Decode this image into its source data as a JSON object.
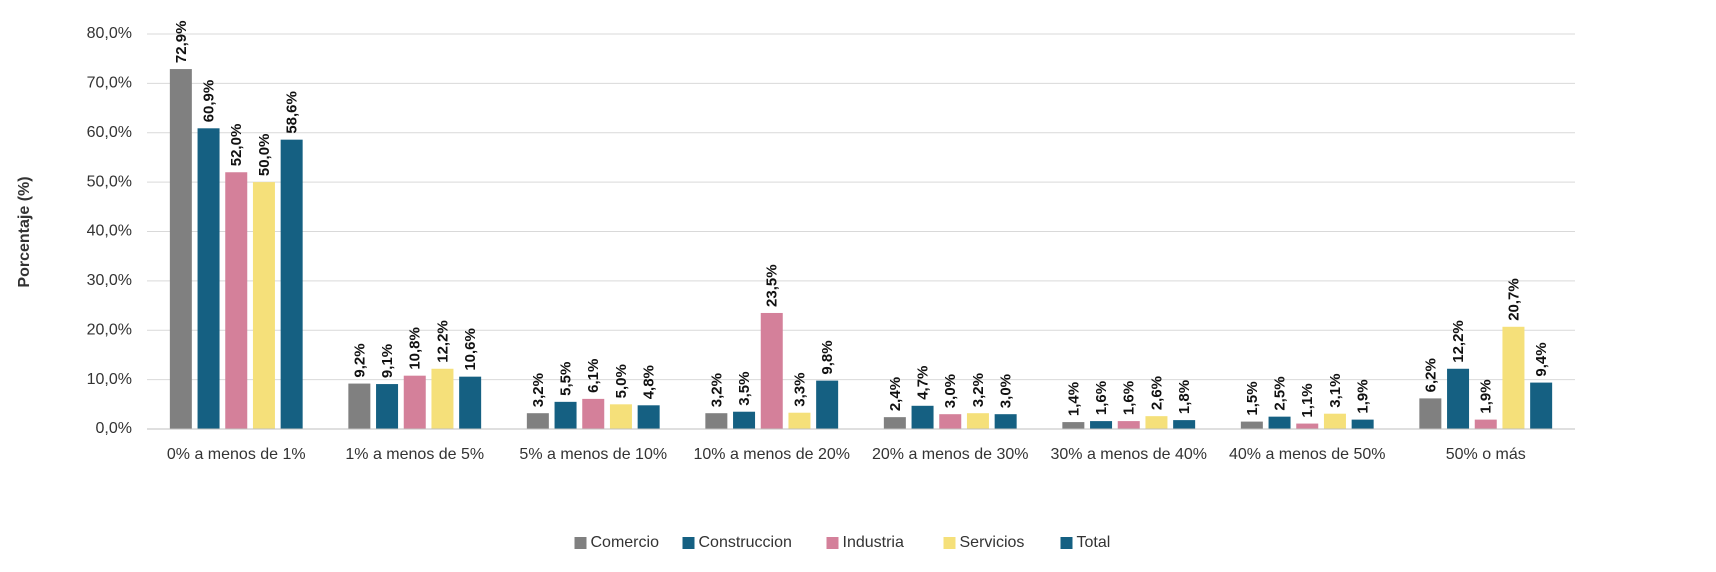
{
  "chart_data": {
    "type": "bar",
    "y_label": "Porcentaje (%)",
    "categories": [
      "0% a menos de 1%",
      "1% a menos de 5%",
      "5% a menos de 10%",
      "10% a menos de 20%",
      "20% a menos de 30%",
      "30% a menos de 40%",
      "40% a menos de 50%",
      "50% o más"
    ],
    "series": [
      {
        "name": "Comercio",
        "color": "#808080",
        "values": [
          72.9,
          9.2,
          3.2,
          3.2,
          2.4,
          1.4,
          1.5,
          6.2
        ],
        "value_labels": [
          "72,9%",
          "9,2%",
          "3,2%",
          "3,2%",
          "2,4%",
          "1,4%",
          "1,5%",
          "6,2%"
        ]
      },
      {
        "name": "Construccion",
        "color": "#156082",
        "values": [
          60.9,
          9.1,
          5.5,
          3.5,
          4.7,
          1.6,
          2.5,
          12.2
        ],
        "value_labels": [
          "60,9%",
          "9,1%",
          "5,5%",
          "3,5%",
          "4,7%",
          "1,6%",
          "2,5%",
          "12,2%"
        ]
      },
      {
        "name": "Industria",
        "color": "#d4809a",
        "values": [
          52.0,
          10.8,
          6.1,
          23.5,
          3.0,
          1.6,
          1.1,
          1.9
        ],
        "value_labels": [
          "52,0%",
          "10,8%",
          "6,1%",
          "23,5%",
          "3,0%",
          "1,6%",
          "1,1%",
          "1,9%"
        ]
      },
      {
        "name": "Servicios",
        "color": "#f5e07a",
        "values": [
          50.0,
          12.2,
          5.0,
          3.3,
          3.2,
          2.6,
          3.1,
          20.7
        ],
        "value_labels": [
          "50,0%",
          "12,2%",
          "5,0%",
          "3,3%",
          "3,2%",
          "2,6%",
          "3,1%",
          "20,7%"
        ]
      },
      {
        "name": "Total",
        "color": "#156082",
        "values": [
          58.6,
          10.6,
          4.8,
          9.8,
          3.0,
          1.8,
          1.9,
          9.4
        ],
        "value_labels": [
          "58,6%",
          "10,6%",
          "4,8%",
          "9,8%",
          "3,0%",
          "1,8%",
          "1,9%",
          "9,4%"
        ]
      }
    ],
    "ylim": [
      0,
      80
    ],
    "yticks": [
      {
        "value": 0,
        "label": "0,0%"
      },
      {
        "value": 10,
        "label": "10,0%"
      },
      {
        "value": 20,
        "label": "20,0%"
      },
      {
        "value": 30,
        "label": "30,0%"
      },
      {
        "value": 40,
        "label": "40,0%"
      },
      {
        "value": 50,
        "label": "50,0%"
      },
      {
        "value": 60,
        "label": "60,0%"
      },
      {
        "value": 70,
        "label": "70,0%"
      },
      {
        "value": 80,
        "label": "80,0%"
      }
    ],
    "grid": true,
    "legend": "bottom"
  }
}
